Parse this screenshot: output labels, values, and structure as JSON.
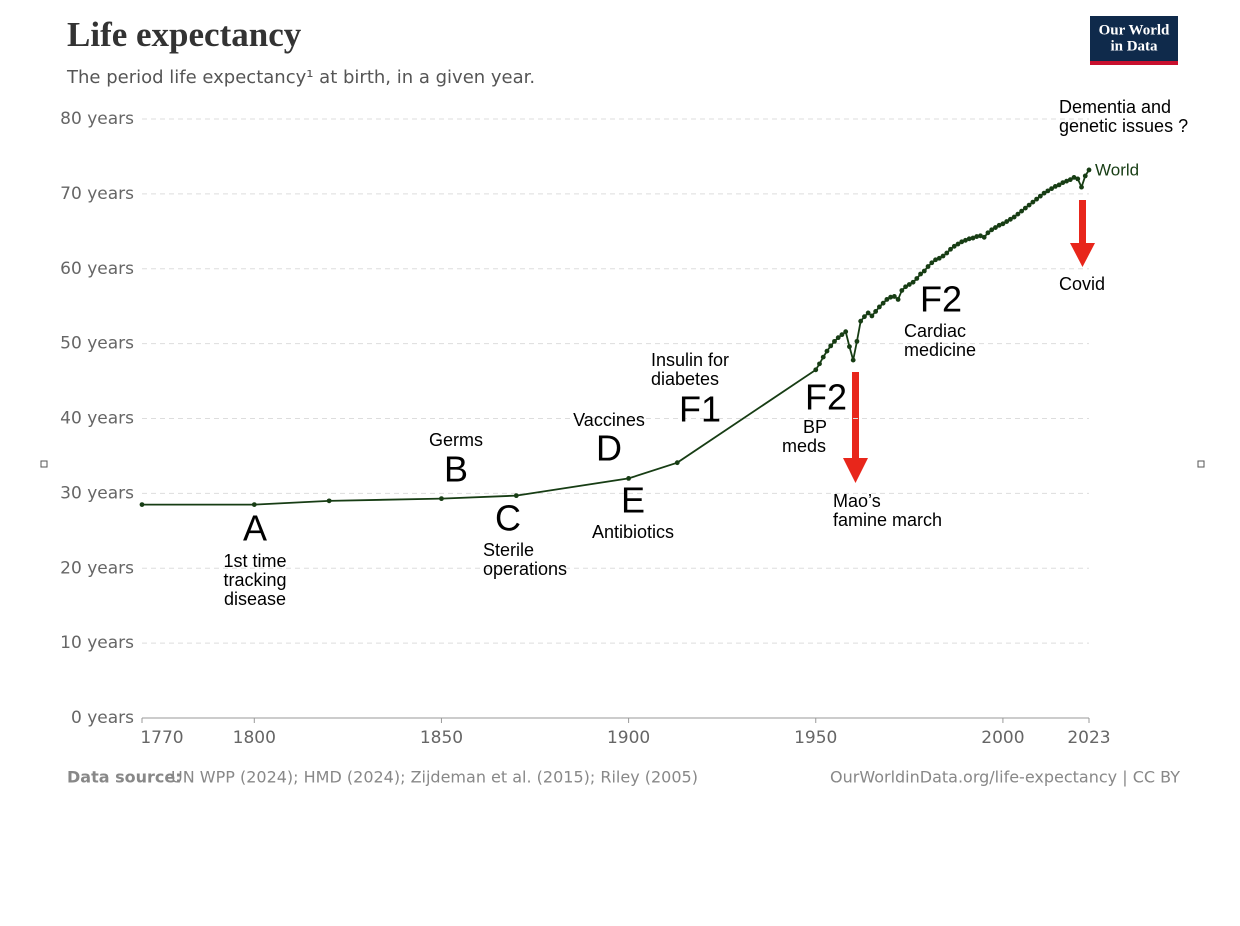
{
  "chart_data": {
    "type": "line",
    "title": "Life expectancy",
    "subtitle": "The period life expectancy¹ at birth, in a given year.",
    "logo": [
      "Our World",
      "in Data"
    ],
    "source_label": "Data source:",
    "source": "UN WPP (2024); HMD (2024); Zijdeman et al. (2015); Riley (2005)",
    "credit": "OurWorldinData.org/life-expectancy  | CC BY",
    "x": [
      1770,
      1800,
      1820,
      1850,
      1870,
      1900,
      1913,
      1950,
      1951,
      1952,
      1953,
      1954,
      1955,
      1956,
      1957,
      1958,
      1959,
      1960,
      1961,
      1962,
      1963,
      1964,
      1965,
      1966,
      1967,
      1968,
      1969,
      1970,
      1971,
      1972,
      1973,
      1974,
      1975,
      1976,
      1977,
      1978,
      1979,
      1980,
      1981,
      1982,
      1983,
      1984,
      1985,
      1986,
      1987,
      1988,
      1989,
      1990,
      1991,
      1992,
      1993,
      1994,
      1995,
      1996,
      1997,
      1998,
      1999,
      2000,
      2001,
      2002,
      2003,
      2004,
      2005,
      2006,
      2007,
      2008,
      2009,
      2010,
      2011,
      2012,
      2013,
      2014,
      2015,
      2016,
      2017,
      2018,
      2019,
      2020,
      2021,
      2022,
      2023
    ],
    "series": [
      {
        "name": "World",
        "color": "#173d14",
        "values": [
          28.5,
          28.5,
          29.0,
          29.3,
          29.7,
          32.0,
          34.1,
          46.5,
          47.3,
          48.2,
          49.0,
          49.7,
          50.3,
          50.8,
          51.2,
          51.6,
          49.6,
          47.8,
          50.3,
          53.0,
          53.6,
          54.1,
          53.7,
          54.3,
          54.9,
          55.4,
          55.9,
          56.2,
          56.3,
          55.9,
          57.1,
          57.6,
          57.9,
          58.2,
          58.7,
          59.3,
          59.7,
          60.3,
          60.8,
          61.2,
          61.4,
          61.7,
          62.1,
          62.6,
          63.0,
          63.3,
          63.6,
          63.8,
          64.0,
          64.1,
          64.3,
          64.4,
          64.2,
          64.8,
          65.2,
          65.5,
          65.8,
          66.0,
          66.3,
          66.6,
          66.9,
          67.3,
          67.7,
          68.1,
          68.5,
          68.9,
          69.3,
          69.7,
          70.1,
          70.4,
          70.7,
          71.0,
          71.2,
          71.5,
          71.7,
          71.9,
          72.2,
          72.0,
          70.9,
          72.4,
          73.2
        ]
      }
    ],
    "xlim": [
      1770,
      2023
    ],
    "xticks": [
      1770,
      1800,
      1850,
      1900,
      1950,
      2000,
      2023
    ],
    "ylim": [
      0,
      80
    ],
    "yticks": [
      {
        "value": 0,
        "label": "0 years"
      },
      {
        "value": 10,
        "label": "10 years"
      },
      {
        "value": 20,
        "label": "20 years"
      },
      {
        "value": 30,
        "label": "30 years"
      },
      {
        "value": 40,
        "label": "40 years"
      },
      {
        "value": 50,
        "label": "50 years"
      },
      {
        "value": 60,
        "label": "60 years"
      },
      {
        "value": 70,
        "label": "70 years"
      },
      {
        "value": 80,
        "label": "80 years"
      }
    ],
    "grid": true,
    "annotations": [
      {
        "lines": [
          "A"
        ]
      },
      {
        "lines": [
          "1st time",
          "tracking",
          "disease"
        ]
      },
      {
        "lines": [
          "Germs"
        ]
      },
      {
        "lines": [
          "B"
        ]
      },
      {
        "lines": [
          "C"
        ]
      },
      {
        "lines": [
          "Sterile",
          "operations"
        ]
      },
      {
        "lines": [
          "Vaccines"
        ]
      },
      {
        "lines": [
          "D"
        ]
      },
      {
        "lines": [
          "E"
        ]
      },
      {
        "lines": [
          "Antibiotics"
        ]
      },
      {
        "lines": [
          "Insulin for",
          "diabetes"
        ]
      },
      {
        "lines": [
          "F1"
        ]
      },
      {
        "lines": [
          "F2"
        ]
      },
      {
        "lines": [
          "BP"
        ]
      },
      {
        "lines": [
          "meds"
        ]
      },
      {
        "lines": [
          "Mao’s",
          "famine march"
        ]
      },
      {
        "lines": [
          "F2"
        ]
      },
      {
        "lines": [
          "Cardiac",
          "medicine"
        ]
      },
      {
        "lines": [
          "Dementia and",
          "genetic issues ?"
        ]
      },
      {
        "lines": [
          "Covid"
        ]
      }
    ]
  }
}
